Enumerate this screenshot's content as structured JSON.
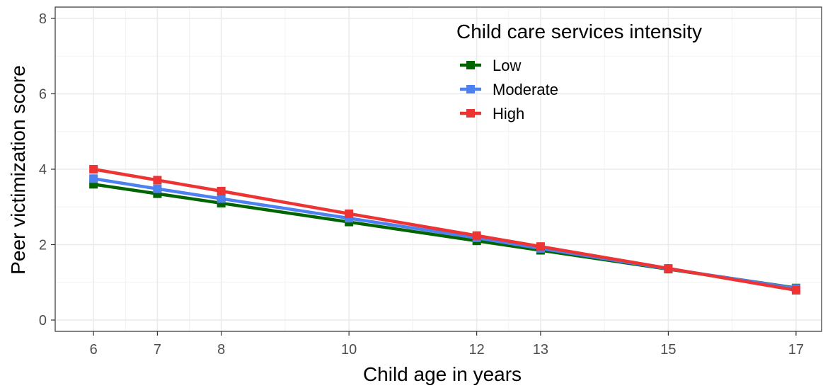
{
  "chart_data": {
    "type": "line",
    "xlabel": "Child age in years",
    "ylabel": "Peer victimization score",
    "x": [
      6,
      7,
      8,
      10,
      12,
      13,
      15,
      17
    ],
    "xticks": [
      6,
      7,
      8,
      10,
      12,
      13,
      15,
      17
    ],
    "xlim": [
      5.4,
      17.4
    ],
    "yticks": [
      0,
      2,
      4,
      6,
      8
    ],
    "ylim": [
      -0.3,
      8.3
    ],
    "grid": true,
    "legend": {
      "title": "Child care services intensity",
      "position": "top-right"
    },
    "series": [
      {
        "name": "Low",
        "color": "#006400",
        "values": [
          3.6,
          3.35,
          3.1,
          2.6,
          2.1,
          1.85,
          1.35,
          0.85
        ]
      },
      {
        "name": "Moderate",
        "color": "#4D80F0",
        "values": [
          3.75,
          3.48,
          3.22,
          2.7,
          2.18,
          1.9,
          1.36,
          0.84
        ]
      },
      {
        "name": "High",
        "color": "#EE3333",
        "values": [
          4.0,
          3.71,
          3.42,
          2.82,
          2.24,
          1.95,
          1.37,
          0.79
        ]
      }
    ]
  }
}
